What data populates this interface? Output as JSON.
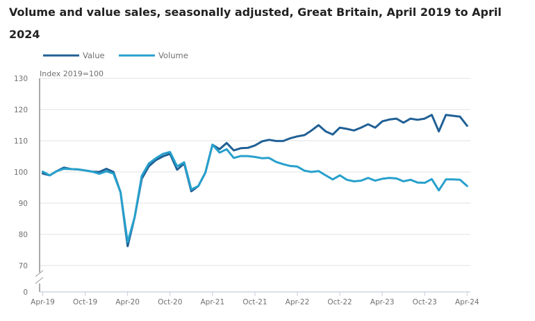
{
  "title": "Volume and value sales, seasonally adjusted, Great Britain, April 2019 to April 2024",
  "chart_data": {
    "type": "line",
    "title": "Volume and value sales, seasonally adjusted, Great Britain, April 2019 to April 2024",
    "xlabel": "",
    "ylabel": "Index 2019=100",
    "ylim": [
      70,
      130
    ],
    "y_axis_break": true,
    "yticks": [
      0,
      70,
      80,
      90,
      100,
      110,
      120,
      130
    ],
    "xtick_labels": [
      "Apr-19",
      "Oct-19",
      "Apr-20",
      "Oct-20",
      "Apr-21",
      "Oct-21",
      "Apr-22",
      "Oct-22",
      "Apr-23",
      "Oct-23",
      "Apr-24"
    ],
    "grid": true,
    "legend_position": "top-left",
    "x": [
      "Apr-19",
      "May-19",
      "Jun-19",
      "Jul-19",
      "Aug-19",
      "Sep-19",
      "Oct-19",
      "Nov-19",
      "Dec-19",
      "Jan-20",
      "Feb-20",
      "Mar-20",
      "Apr-20",
      "May-20",
      "Jun-20",
      "Jul-20",
      "Aug-20",
      "Sep-20",
      "Oct-20",
      "Nov-20",
      "Dec-20",
      "Jan-21",
      "Feb-21",
      "Mar-21",
      "Apr-21",
      "May-21",
      "Jun-21",
      "Jul-21",
      "Aug-21",
      "Sep-21",
      "Oct-21",
      "Nov-21",
      "Dec-21",
      "Jan-22",
      "Feb-22",
      "Mar-22",
      "Apr-22",
      "May-22",
      "Jun-22",
      "Jul-22",
      "Aug-22",
      "Sep-22",
      "Oct-22",
      "Nov-22",
      "Dec-22",
      "Jan-23",
      "Feb-23",
      "Mar-23",
      "Apr-23",
      "May-23",
      "Jun-23",
      "Jul-23",
      "Aug-23",
      "Sep-23",
      "Oct-23",
      "Nov-23",
      "Dec-23",
      "Jan-24",
      "Feb-24",
      "Mar-24",
      "Apr-24"
    ],
    "series": [
      {
        "name": "Value",
        "color": "#206095",
        "values": [
          99.5,
          98.9,
          100.3,
          101.4,
          100.9,
          100.8,
          100.5,
          100.1,
          100.0,
          101.0,
          100.0,
          93.5,
          76.2,
          85.5,
          97.8,
          101.8,
          103.8,
          105.0,
          105.8,
          100.7,
          102.7,
          93.8,
          95.5,
          99.8,
          108.7,
          107.3,
          109.3,
          106.9,
          107.6,
          107.7,
          108.5,
          109.8,
          110.3,
          109.9,
          109.9,
          110.8,
          111.4,
          111.8,
          113.3,
          115.0,
          113.0,
          112.0,
          114.2,
          113.8,
          113.3,
          114.2,
          115.3,
          114.2,
          116.2,
          116.8,
          117.1,
          115.8,
          117.1,
          116.7,
          117.1,
          118.3,
          113.0,
          118.3,
          118.0,
          117.7,
          114.8
        ]
      },
      {
        "name": "Volume",
        "color": "#27a0cc",
        "values": [
          100.1,
          98.9,
          100.3,
          101.0,
          100.9,
          100.8,
          100.5,
          100.1,
          99.4,
          100.2,
          99.5,
          93.5,
          77.5,
          85.5,
          98.7,
          102.7,
          104.4,
          105.8,
          106.4,
          101.8,
          103.1,
          94.4,
          95.5,
          99.8,
          108.7,
          106.2,
          107.3,
          104.5,
          105.1,
          105.1,
          104.8,
          104.4,
          104.5,
          103.2,
          102.5,
          101.9,
          101.7,
          100.4,
          100.0,
          100.3,
          98.9,
          97.6,
          98.9,
          97.5,
          97.0,
          97.2,
          98.1,
          97.2,
          97.8,
          98.1,
          97.9,
          97.0,
          97.5,
          96.6,
          96.5,
          97.7,
          94.1,
          97.6,
          97.6,
          97.5,
          95.5
        ]
      }
    ]
  }
}
